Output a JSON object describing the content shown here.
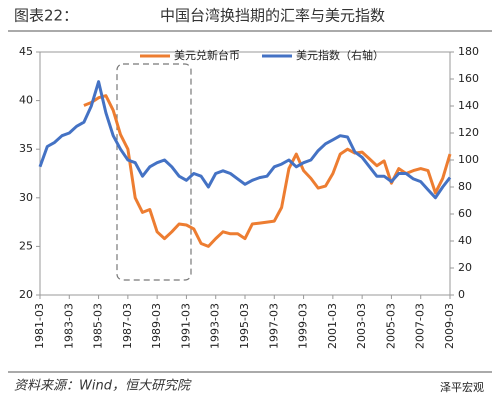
{
  "chart_data": {
    "type": "line",
    "figure_label": "图表22：",
    "title": "中国台湾换挡期的汇率与美元指数",
    "source": "资料来源：Wind，恒大研究院",
    "watermark": "泽平宏观",
    "x": [
      "1981-03",
      "1981-09",
      "1982-03",
      "1982-09",
      "1983-03",
      "1983-09",
      "1984-03",
      "1984-09",
      "1985-03",
      "1985-09",
      "1986-03",
      "1986-09",
      "1987-03",
      "1987-09",
      "1988-03",
      "1988-09",
      "1989-03",
      "1989-09",
      "1990-03",
      "1990-09",
      "1991-03",
      "1991-09",
      "1992-03",
      "1992-09",
      "1993-03",
      "1993-09",
      "1994-03",
      "1994-09",
      "1995-03",
      "1995-09",
      "1996-03",
      "1996-09",
      "1997-03",
      "1997-09",
      "1998-03",
      "1998-09",
      "1999-03",
      "1999-09",
      "2000-03",
      "2000-09",
      "2001-03",
      "2001-09",
      "2002-03",
      "2002-09",
      "2003-03",
      "2003-09",
      "2004-03",
      "2004-09",
      "2005-03",
      "2005-09",
      "2006-03",
      "2006-09",
      "2007-03",
      "2007-09",
      "2008-03",
      "2008-09",
      "2009-03"
    ],
    "series": [
      {
        "name": "美元兑新台币",
        "color": "#ED7D31",
        "axis": "y",
        "values": [
          null,
          null,
          null,
          null,
          null,
          null,
          39.5,
          39.8,
          40.3,
          40.5,
          39,
          36.5,
          35,
          30,
          28.5,
          28.8,
          26.5,
          25.8,
          26.5,
          27.3,
          27.2,
          26.8,
          25.3,
          25,
          25.8,
          26.5,
          26.3,
          26.3,
          25.8,
          27.3,
          27.4,
          27.5,
          27.6,
          29,
          33,
          34.5,
          32.8,
          32,
          31,
          31.2,
          32.5,
          34.5,
          35,
          34.6,
          34.7,
          34,
          33.3,
          33.8,
          31.5,
          33,
          32.5,
          32.8,
          33,
          32.8,
          30.5,
          32,
          34.5
        ]
      },
      {
        "name": "美元指数（右轴）",
        "color": "#4472C4",
        "axis": "y2",
        "values": [
          95,
          110,
          113,
          118,
          120,
          125,
          128,
          140,
          158,
          135,
          118,
          108,
          100,
          98,
          88,
          95,
          98,
          100,
          95,
          88,
          85,
          90,
          88,
          80,
          90,
          92,
          90,
          86,
          82,
          85,
          87,
          88,
          95,
          97,
          100,
          95,
          98,
          100,
          107,
          112,
          115,
          118,
          117,
          106,
          102,
          95,
          88,
          88,
          84,
          90,
          90,
          86,
          84,
          78,
          72,
          80,
          87
        ]
      }
    ],
    "ylim": [
      20,
      45
    ],
    "yticks": [
      20,
      25,
      30,
      35,
      40,
      45
    ],
    "y2lim": [
      0,
      180
    ],
    "y2ticks": [
      0,
      20,
      40,
      60,
      80,
      100,
      120,
      140,
      160,
      180
    ],
    "xticks": [
      "1981-03",
      "1983-03",
      "1985-03",
      "1987-03",
      "1989-03",
      "1991-03",
      "1993-03",
      "1995-03",
      "1997-03",
      "1999-03",
      "2001-03",
      "2003-03",
      "2005-03",
      "2007-03",
      "2009-03"
    ]
  }
}
